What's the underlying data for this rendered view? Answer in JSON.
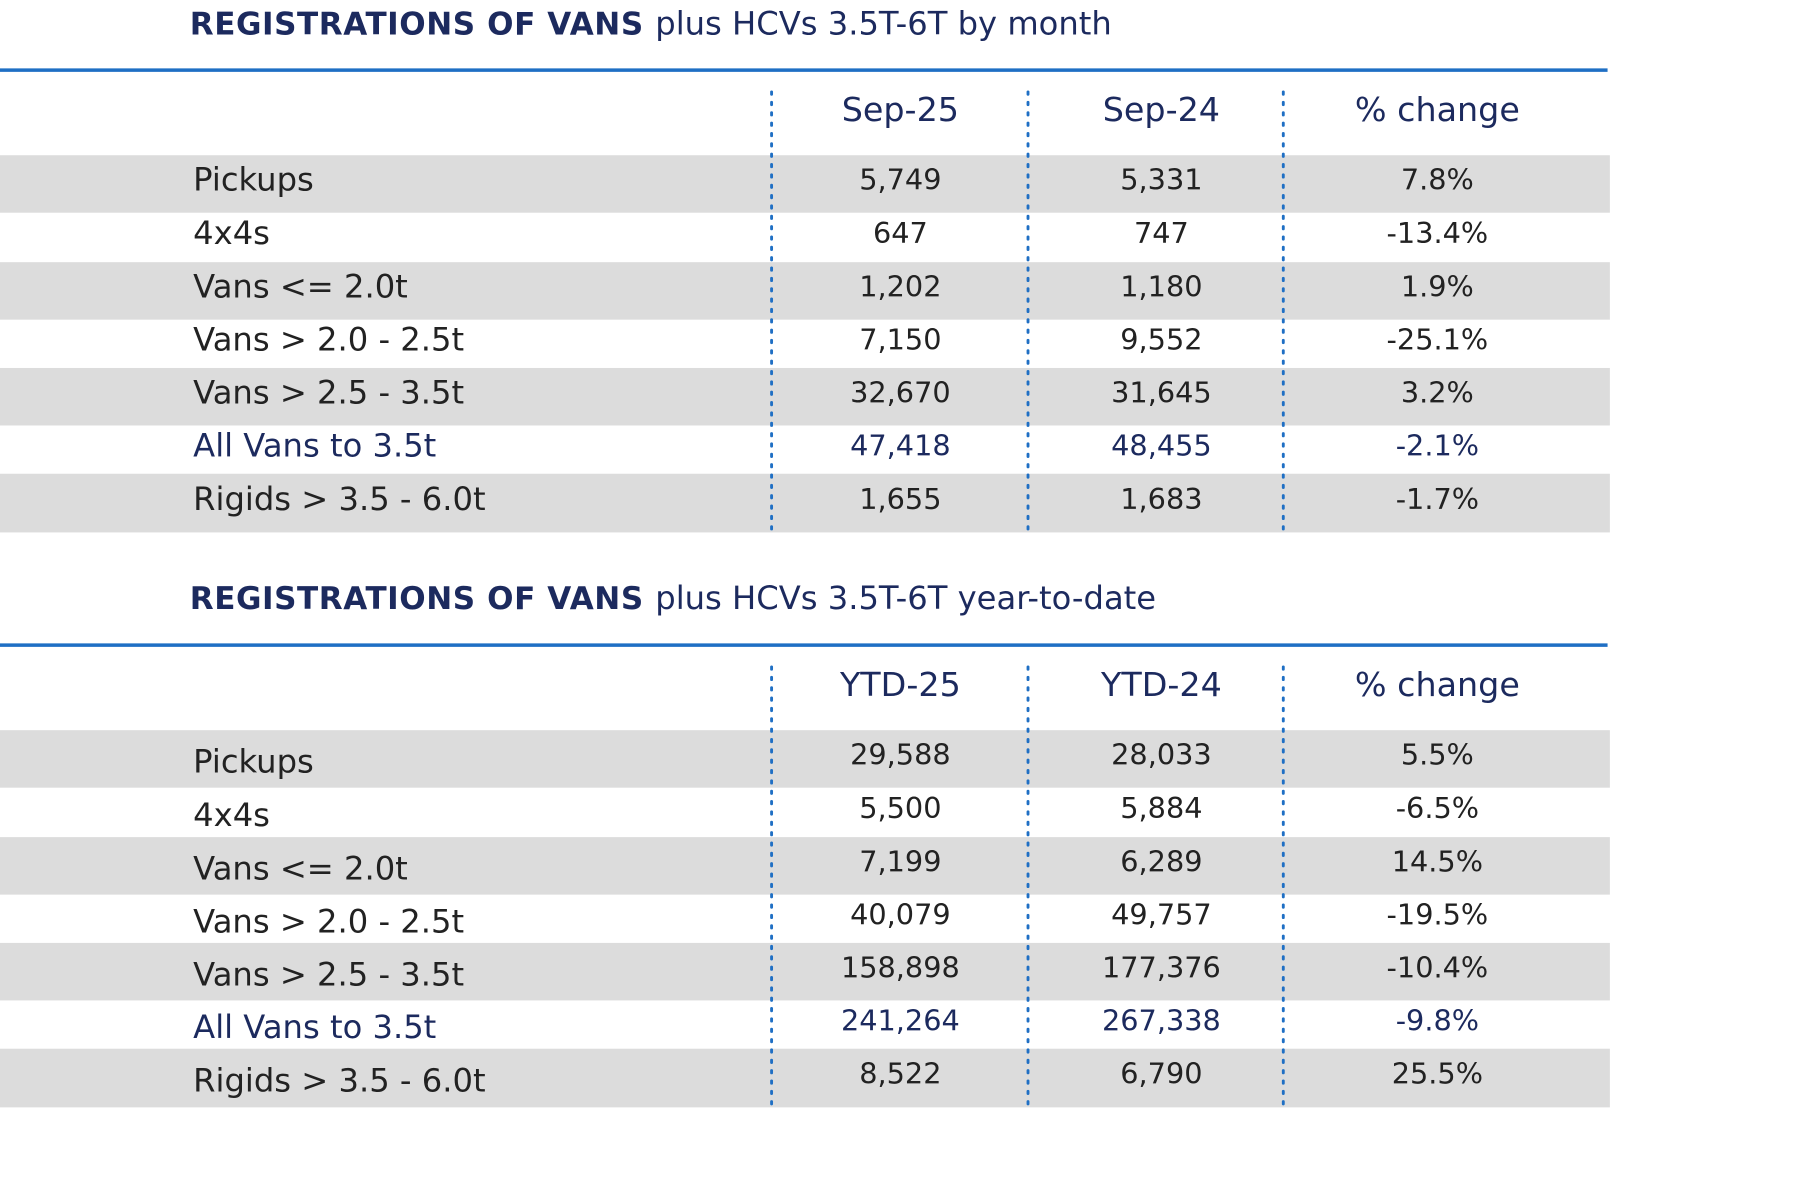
{
  "tables": [
    {
      "title_bold": "REGISTRATIONS OF VANS",
      "title_rest": "plus HCVs 3.5T-6T by month",
      "headers": [
        "Sep-25",
        "Sep-24",
        "% change"
      ],
      "rows": [
        [
          "Pickups",
          "5,749",
          "5,331",
          "7.8%"
        ],
        [
          "4x4s",
          "647",
          "747",
          "-13.4%"
        ],
        [
          "Vans <= 2.0t",
          "1,202",
          "1,180",
          "1.9%"
        ],
        [
          "Vans > 2.0 - 2.5t",
          "7,150",
          "9,552",
          "-25.1%"
        ],
        [
          "Vans > 2.5 - 3.5t",
          "32,670",
          "31,645",
          "3.2%"
        ],
        [
          "All Vans to 3.5t",
          "47,418",
          "48,455",
          "-2.1%"
        ],
        [
          "Rigids > 3.5 - 6.0t",
          "1,655",
          "1,683",
          "-1.7%"
        ]
      ]
    },
    {
      "title_bold": "REGISTRATIONS OF VANS",
      "title_rest": "plus HCVs 3.5T-6T year-to-date",
      "headers": [
        "YTD-25",
        "YTD-24",
        "% change"
      ],
      "rows": [
        [
          "Pickups",
          "29,588",
          "28,033",
          "5.5%"
        ],
        [
          "4x4s",
          "5,500",
          "5,884",
          "-6.5%"
        ],
        [
          "Vans <= 2.0t",
          "7,199",
          "6,289",
          "14.5%"
        ],
        [
          "Vans > 2.0 - 2.5t",
          "40,079",
          "49,757",
          "-19.5%"
        ],
        [
          "Vans > 2.5 - 3.5t",
          "158,898",
          "177,376",
          "-10.4%"
        ],
        [
          "All Vans to 3.5t",
          "241,264",
          "267,338",
          "-9.8%"
        ],
        [
          "Rigids > 3.5 - 6.0t",
          "8,522",
          "6,790",
          "25.5%"
        ]
      ]
    }
  ]
}
